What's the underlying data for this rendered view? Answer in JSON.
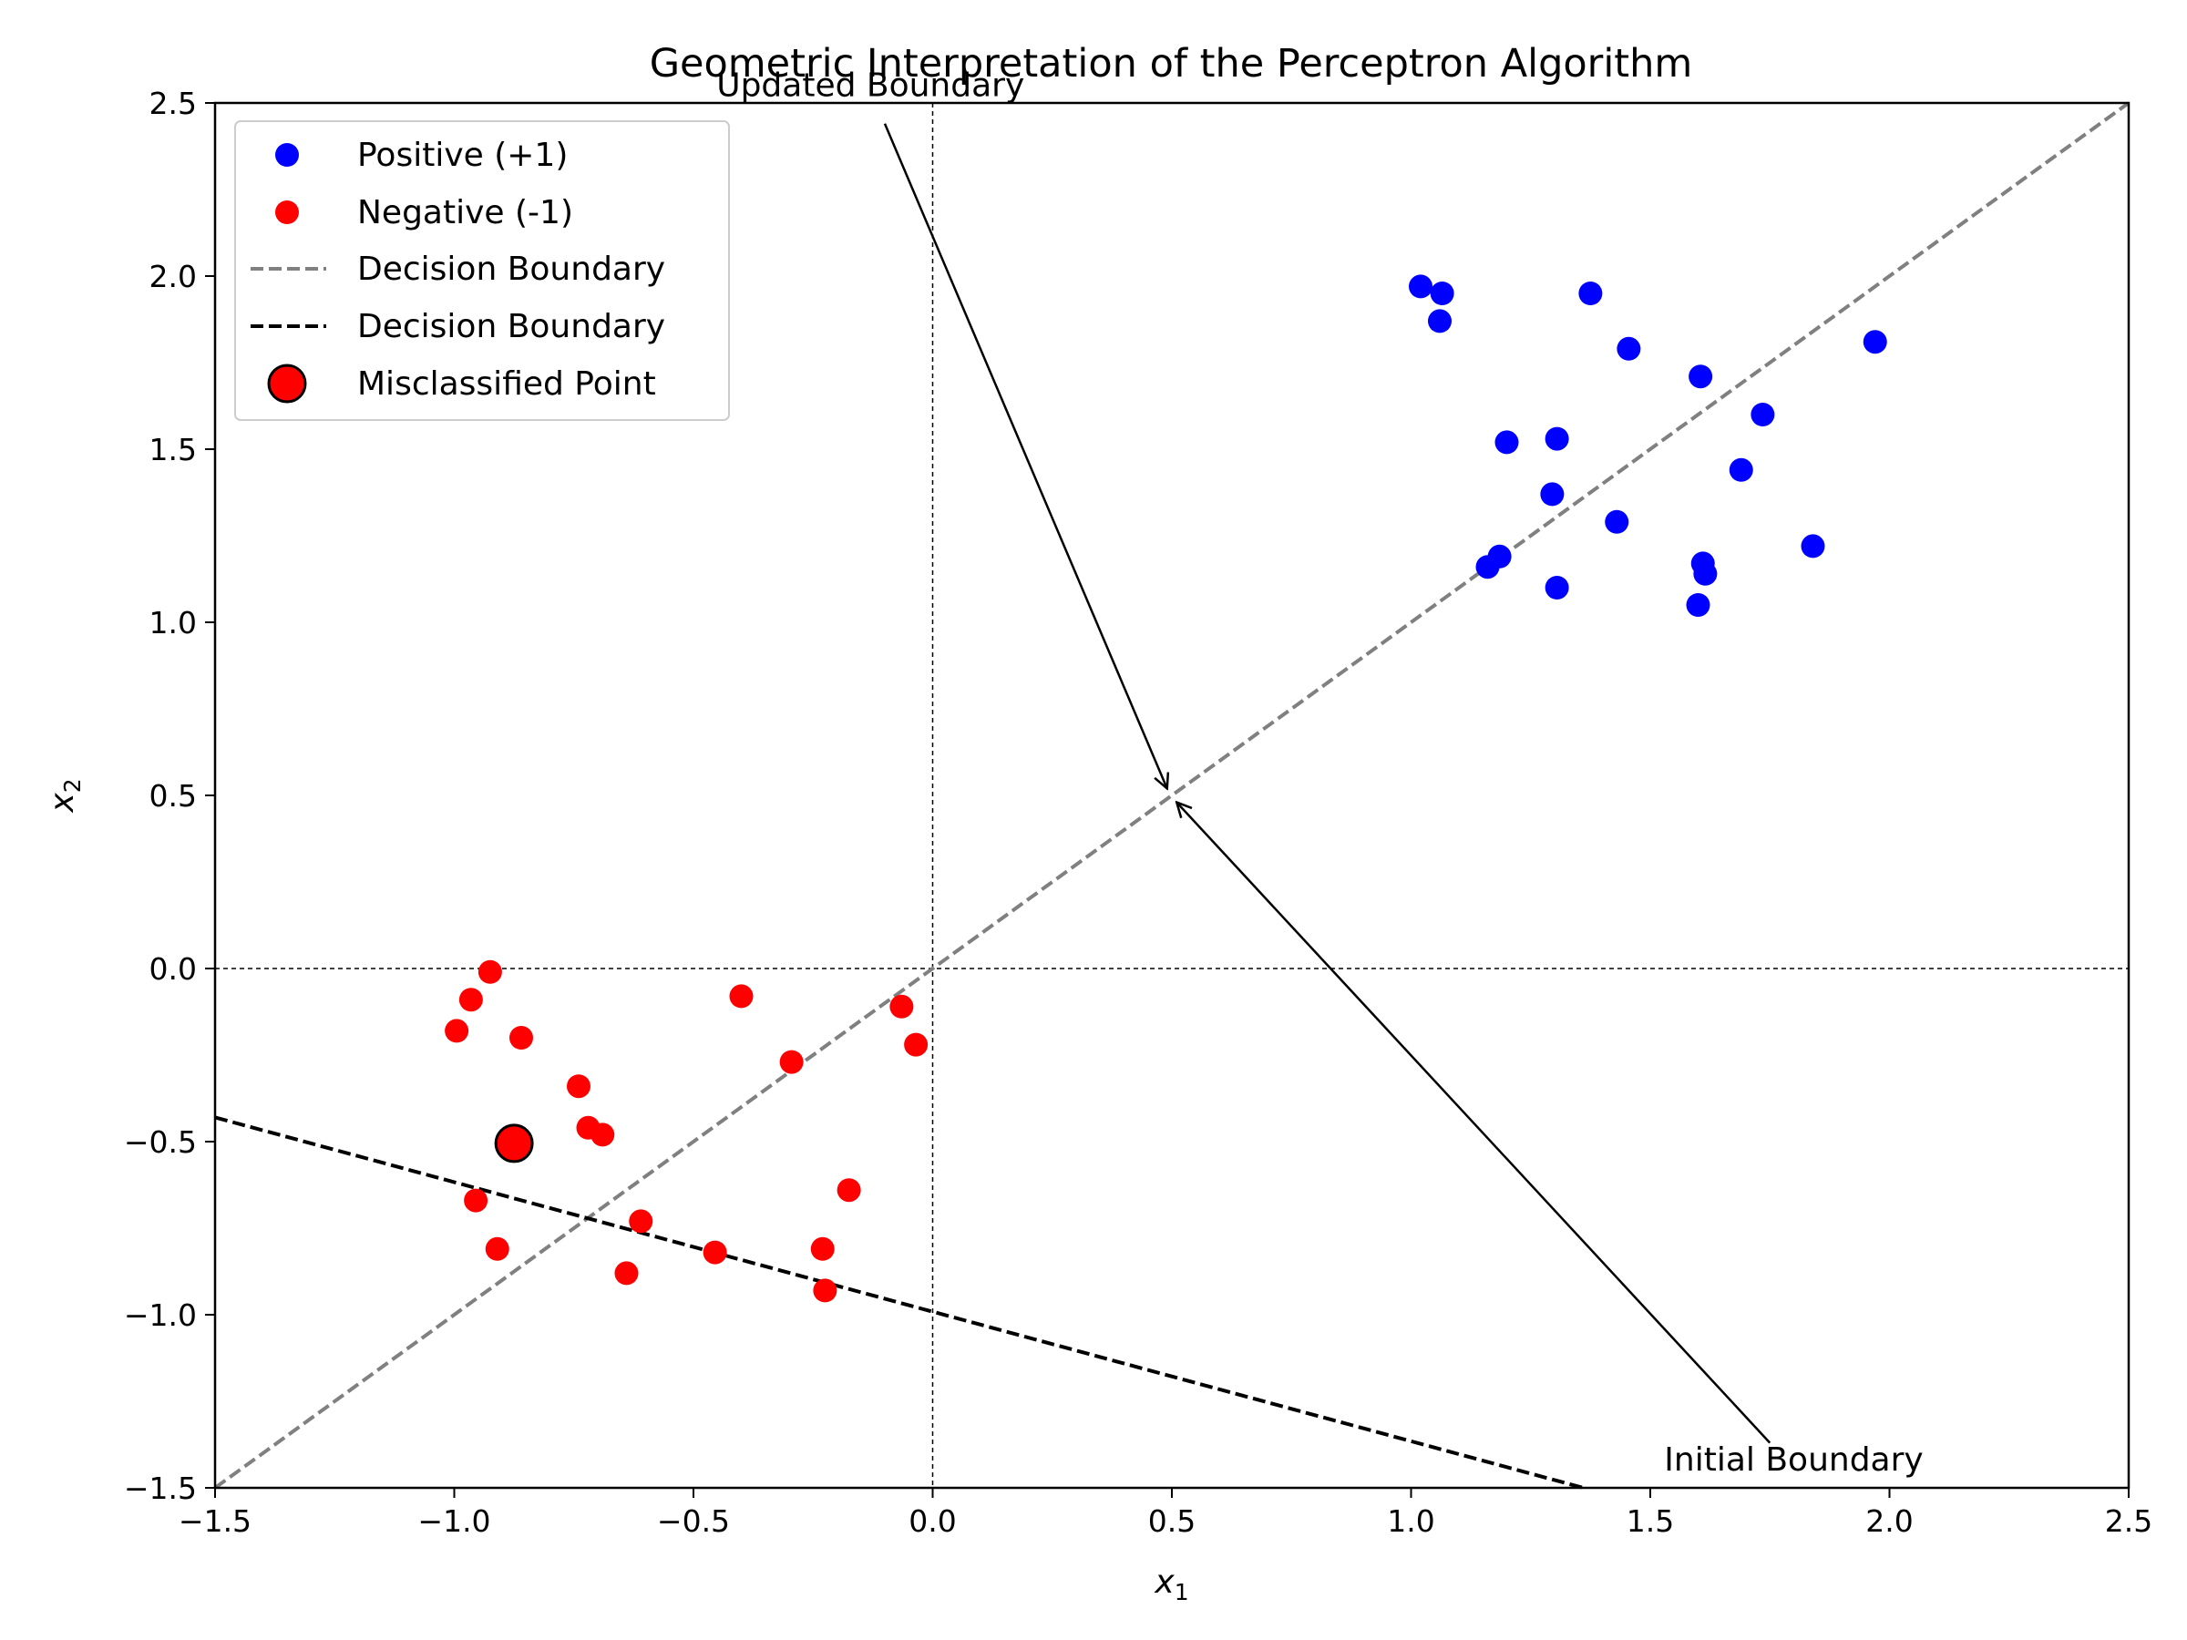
{
  "chart_data": {
    "type": "scatter",
    "title": "Geometric Interpretation of the Perceptron Algorithm",
    "xlabel": "x",
    "xlabel_sub": "1",
    "ylabel": "x",
    "ylabel_sub": "2",
    "xlim": [
      -1.5,
      2.5
    ],
    "ylim": [
      -1.5,
      2.5
    ],
    "xticks": [
      -1.5,
      -1.0,
      -0.5,
      0.0,
      0.5,
      1.0,
      1.5,
      2.0,
      2.5
    ],
    "yticks": [
      -1.5,
      -1.0,
      -0.5,
      0.0,
      0.5,
      1.0,
      1.5,
      2.0,
      2.5
    ],
    "xtick_labels": [
      "−1.5",
      "−1.0",
      "−0.5",
      "0.0",
      "0.5",
      "1.0",
      "1.5",
      "2.0",
      "2.5"
    ],
    "ytick_labels": [
      "−1.5",
      "−1.0",
      "−0.5",
      "0.0",
      "0.5",
      "1.0",
      "1.5",
      "2.0",
      "2.5"
    ],
    "grid": false,
    "legend_position": "top-left",
    "colors": {
      "positive": "#0000ff",
      "negative": "#ff0000",
      "boundary_updated": "#808080",
      "boundary_initial": "#000000"
    },
    "series": [
      {
        "name": "Positive (+1)",
        "points": [
          [
            1.02,
            1.97
          ],
          [
            1.065,
            1.95
          ],
          [
            1.06,
            1.87
          ],
          [
            1.375,
            1.95
          ],
          [
            1.455,
            1.79
          ],
          [
            1.605,
            1.71
          ],
          [
            1.97,
            1.81
          ],
          [
            1.735,
            1.6
          ],
          [
            1.2,
            1.52
          ],
          [
            1.305,
            1.53
          ],
          [
            1.69,
            1.44
          ],
          [
            1.295,
            1.37
          ],
          [
            1.43,
            1.29
          ],
          [
            1.185,
            1.19
          ],
          [
            1.16,
            1.16
          ],
          [
            1.61,
            1.17
          ],
          [
            1.615,
            1.14
          ],
          [
            1.84,
            1.22
          ],
          [
            1.305,
            1.1
          ],
          [
            1.6,
            1.05
          ]
        ]
      },
      {
        "name": "Negative (-1)",
        "points": [
          [
            -0.925,
            -0.01
          ],
          [
            -0.965,
            -0.09
          ],
          [
            -0.995,
            -0.18
          ],
          [
            -0.86,
            -0.2
          ],
          [
            -0.4,
            -0.08
          ],
          [
            -0.065,
            -0.11
          ],
          [
            -0.035,
            -0.22
          ],
          [
            -0.295,
            -0.27
          ],
          [
            -0.74,
            -0.34
          ],
          [
            -0.72,
            -0.46
          ],
          [
            -0.69,
            -0.48
          ],
          [
            -0.955,
            -0.67
          ],
          [
            -0.91,
            -0.81
          ],
          [
            -0.61,
            -0.73
          ],
          [
            -0.64,
            -0.88
          ],
          [
            -0.455,
            -0.82
          ],
          [
            -0.23,
            -0.81
          ],
          [
            -0.225,
            -0.93
          ],
          [
            -0.175,
            -0.64
          ]
        ]
      },
      {
        "name": "Decision Boundary",
        "line": [
          [
            -1.5,
            -1.5
          ],
          [
            2.5,
            2.5
          ]
        ],
        "style": "dashed"
      },
      {
        "name": "Decision Boundary",
        "line": [
          [
            -1.5,
            -0.43
          ],
          [
            1.36,
            -1.5
          ]
        ],
        "style": "dashed"
      },
      {
        "name": "Misclassified Point",
        "points": [
          [
            -0.875,
            -0.505
          ]
        ]
      }
    ],
    "reference_lines": {
      "x": 0,
      "y": 0
    },
    "annotations": [
      {
        "text": "Updated Boundary",
        "text_at": [
          -0.13,
          2.52
        ],
        "arrow_from": [
          -0.1,
          2.44
        ],
        "arrow_to": [
          0.49,
          0.52
        ]
      },
      {
        "text": "Initial Boundary",
        "text_at": [
          1.8,
          -1.45
        ],
        "arrow_from": [
          1.75,
          -1.37
        ],
        "arrow_to": [
          0.51,
          0.48
        ]
      }
    ]
  }
}
